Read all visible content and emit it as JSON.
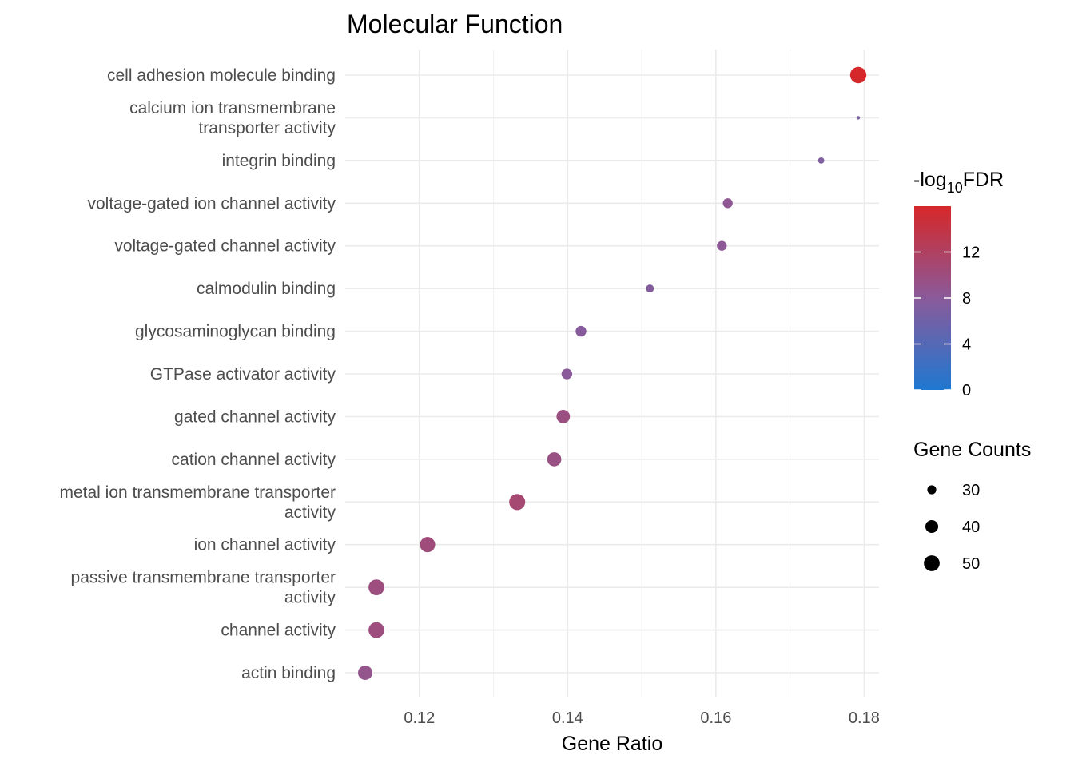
{
  "chart_data": {
    "type": "scatter",
    "title": "Molecular Function",
    "xlabel": "Gene Ratio",
    "ylabel": "",
    "xlim": [
      0.11,
      0.182
    ],
    "x_ticks": [
      0.12,
      0.14,
      0.16,
      0.18
    ],
    "x_tick_labels": [
      "0.12",
      "0.14",
      "0.16",
      "0.18"
    ],
    "grid": true,
    "points": [
      {
        "term": "cell adhesion molecule binding",
        "label_lines": [
          "cell adhesion molecule binding"
        ],
        "gene_ratio": 0.1792,
        "count": 52,
        "neg_log10_fdr": 15.8
      },
      {
        "term": "calcium ion transmembrane transporter activity",
        "label_lines": [
          "calcium ion transmembrane",
          "transporter activity"
        ],
        "gene_ratio": 0.1792,
        "count": 22,
        "neg_log10_fdr": 6.8
      },
      {
        "term": "integrin binding",
        "label_lines": [
          "integrin binding"
        ],
        "gene_ratio": 0.1742,
        "count": 25,
        "neg_log10_fdr": 7.2
      },
      {
        "term": "voltage-gated ion channel activity",
        "label_lines": [
          "voltage-gated ion channel activity"
        ],
        "gene_ratio": 0.1616,
        "count": 32,
        "neg_log10_fdr": 8.5
      },
      {
        "term": "voltage-gated channel activity",
        "label_lines": [
          "voltage-gated channel activity"
        ],
        "gene_ratio": 0.1608,
        "count": 32,
        "neg_log10_fdr": 8.3
      },
      {
        "term": "calmodulin binding",
        "label_lines": [
          "calmodulin binding"
        ],
        "gene_ratio": 0.1511,
        "count": 28,
        "neg_log10_fdr": 7.5
      },
      {
        "term": "glycosaminoglycan binding",
        "label_lines": [
          "glycosaminoglycan binding"
        ],
        "gene_ratio": 0.1418,
        "count": 34,
        "neg_log10_fdr": 7.8
      },
      {
        "term": "GTPase activator activity",
        "label_lines": [
          "GTPase activator activity"
        ],
        "gene_ratio": 0.1399,
        "count": 34,
        "neg_log10_fdr": 8.0
      },
      {
        "term": "gated channel activity",
        "label_lines": [
          "gated channel activity"
        ],
        "gene_ratio": 0.1394,
        "count": 42,
        "neg_log10_fdr": 9.8
      },
      {
        "term": "cation channel activity",
        "label_lines": [
          "cation channel activity"
        ],
        "gene_ratio": 0.1382,
        "count": 44,
        "neg_log10_fdr": 9.6
      },
      {
        "term": "metal ion transmembrane transporter activity",
        "label_lines": [
          "metal ion transmembrane transporter",
          "activity"
        ],
        "gene_ratio": 0.1332,
        "count": 51,
        "neg_log10_fdr": 10.8
      },
      {
        "term": "ion channel activity",
        "label_lines": [
          "ion channel activity"
        ],
        "gene_ratio": 0.1211,
        "count": 48,
        "neg_log10_fdr": 10.2
      },
      {
        "term": "passive transmembrane transporter activity",
        "label_lines": [
          "passive transmembrane transporter",
          "activity"
        ],
        "gene_ratio": 0.1142,
        "count": 50,
        "neg_log10_fdr": 10.0
      },
      {
        "term": "channel activity",
        "label_lines": [
          "channel activity"
        ],
        "gene_ratio": 0.1142,
        "count": 50,
        "neg_log10_fdr": 10.0
      },
      {
        "term": "actin binding",
        "label_lines": [
          "actin binding"
        ],
        "gene_ratio": 0.1127,
        "count": 45,
        "neg_log10_fdr": 9.0
      }
    ],
    "color_legend": {
      "title_prefix": "-log",
      "title_subscript": "10",
      "title_suffix": "FDR",
      "range": [
        0,
        16
      ],
      "ticks": [
        0,
        4,
        8,
        12
      ],
      "tick_labels": [
        "0",
        "4",
        "8",
        "12"
      ],
      "low_color": "#1f78d1",
      "mid_color": "#8a5a9a",
      "high_color": "#d62728"
    },
    "size_legend": {
      "title": "Gene Counts",
      "values": [
        30,
        40,
        50
      ],
      "labels": [
        "30",
        "40",
        "50"
      ],
      "size_range": [
        22,
        52
      ]
    }
  }
}
